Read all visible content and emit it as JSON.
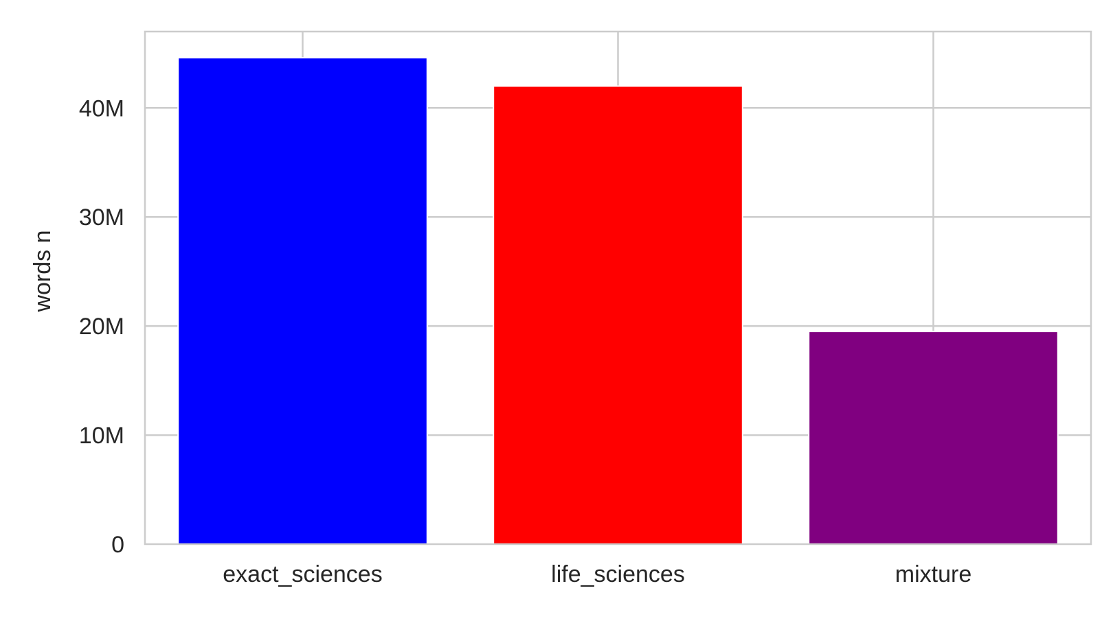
{
  "chart_data": {
    "type": "bar",
    "title": "",
    "xlabel": "",
    "ylabel": "words n",
    "categories": [
      "exact_sciences",
      "life_sciences",
      "mixture"
    ],
    "values": [
      44600000,
      42000000,
      19500000
    ],
    "colors": [
      "#0000ff",
      "#ff0000",
      "#800080"
    ],
    "ylim": [
      0,
      47000000
    ],
    "yticks": [
      0,
      10000000,
      20000000,
      30000000,
      40000000
    ],
    "ytick_labels": [
      "0",
      "10M",
      "20M",
      "30M",
      "40M"
    ],
    "grid": true,
    "legend": "none"
  }
}
